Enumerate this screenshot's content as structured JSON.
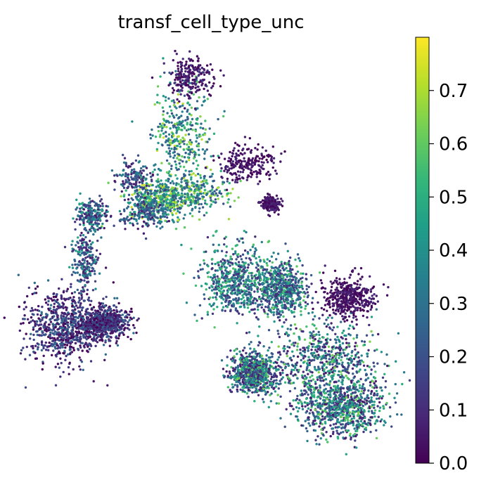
{
  "chart_data": {
    "type": "scatter",
    "title": "transf_cell_type_unc",
    "xlabel": "",
    "ylabel": "",
    "axes_visible": false,
    "grid": false,
    "colormap": "viridis",
    "colorbar": {
      "location": "right",
      "range": [
        0.0,
        0.8
      ],
      "ticks": [
        0.0,
        0.1,
        0.2,
        0.3,
        0.4,
        0.5,
        0.6,
        0.7
      ],
      "tick_labels": [
        "0.0",
        "0.1",
        "0.2",
        "0.3",
        "0.4",
        "0.5",
        "0.6",
        "0.7"
      ]
    },
    "point_color_scale": [
      "#440154",
      "#482878",
      "#3e4989",
      "#31688e",
      "#26828e",
      "#1f9e89",
      "#35b779",
      "#6ece58",
      "#b5de2b",
      "#fde725"
    ],
    "clusters": [
      {
        "id": "top-stalk",
        "approx_points": 1100,
        "typical_value_range": [
          0.2,
          0.75
        ]
      },
      {
        "id": "top-head",
        "approx_points": 220,
        "typical_value_range": [
          0.0,
          0.15
        ]
      },
      {
        "id": "upper-right-blob",
        "approx_points": 420,
        "typical_value_range": [
          0.0,
          0.1
        ]
      },
      {
        "id": "left-mid-blob",
        "approx_points": 260,
        "typical_value_range": [
          0.05,
          0.4
        ]
      },
      {
        "id": "left-bridge",
        "approx_points": 420,
        "typical_value_range": [
          0.05,
          0.5
        ]
      },
      {
        "id": "bottom-left-mass",
        "approx_points": 1400,
        "typical_value_range": [
          0.0,
          0.3
        ]
      },
      {
        "id": "right-mass-upper",
        "approx_points": 1200,
        "typical_value_range": [
          0.1,
          0.6
        ]
      },
      {
        "id": "right-mass-lower",
        "approx_points": 2200,
        "typical_value_range": [
          0.05,
          0.65
        ]
      },
      {
        "id": "right-side-blob",
        "approx_points": 420,
        "typical_value_range": [
          0.0,
          0.1
        ]
      }
    ]
  }
}
